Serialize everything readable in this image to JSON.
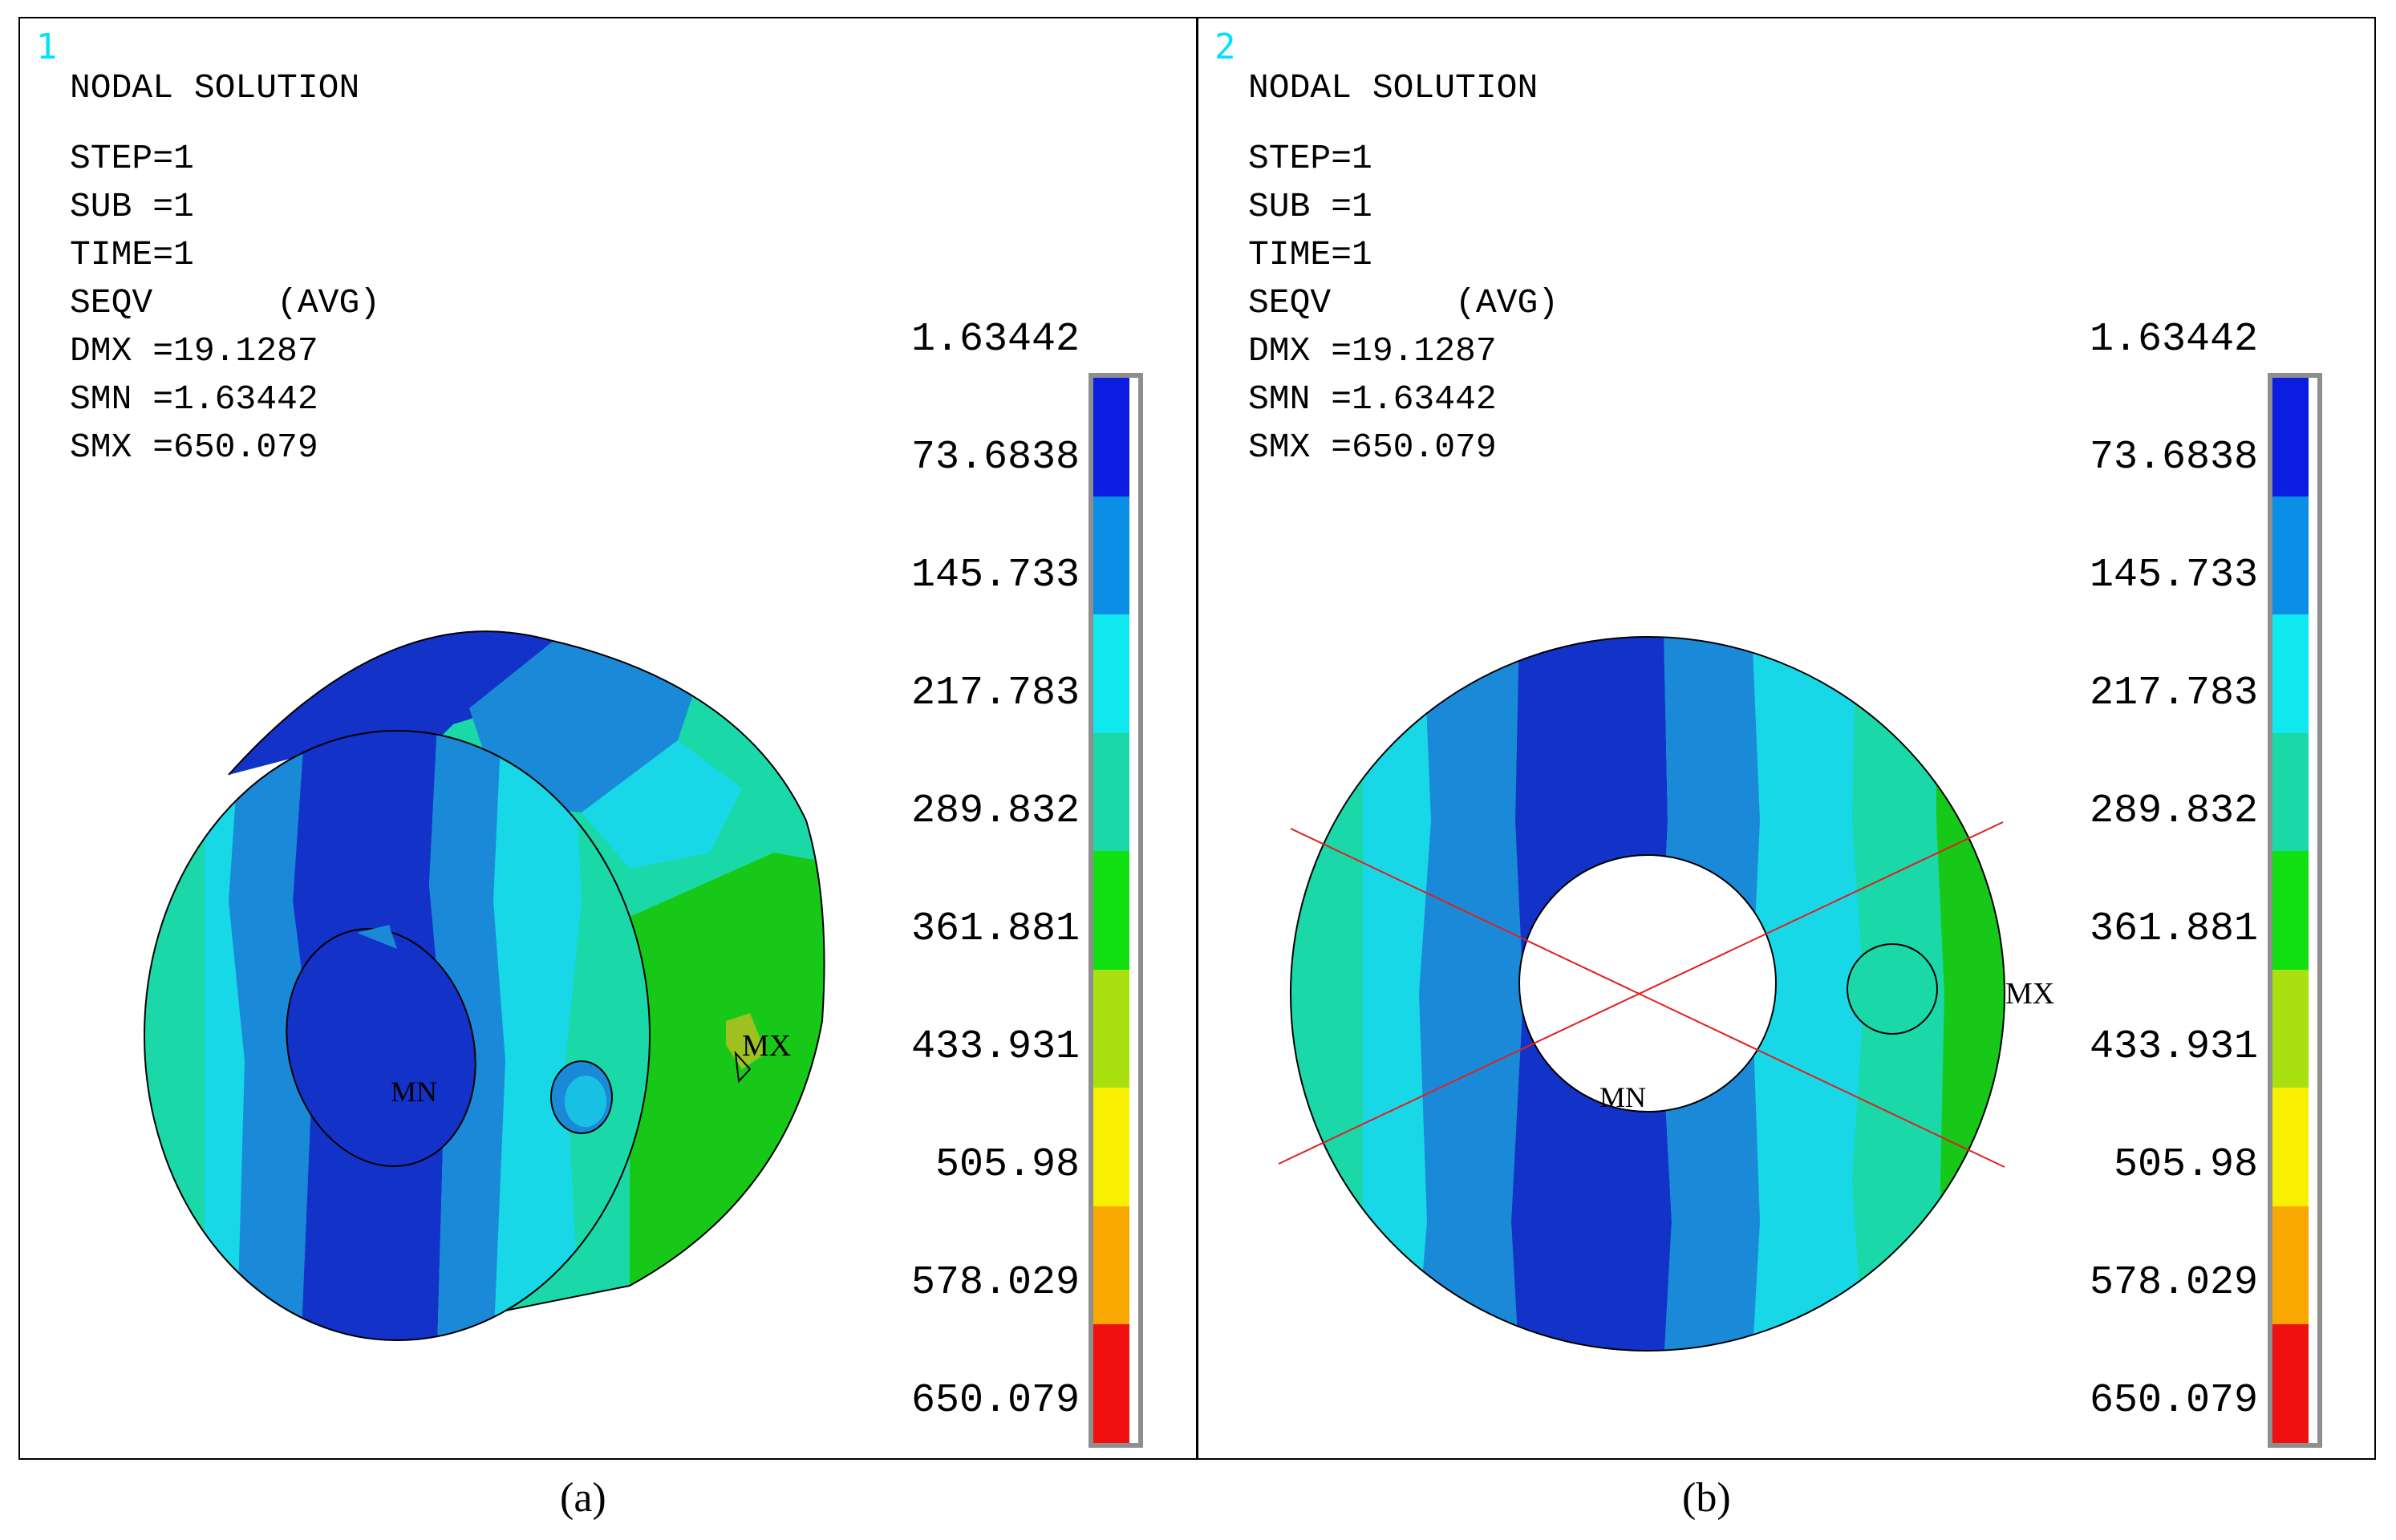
{
  "panels": [
    {
      "number": "1",
      "title": "NODAL SOLUTION",
      "info": [
        "STEP=1",
        "SUB =1",
        "TIME=1",
        "SEQV      (AVG)",
        "DMX =19.1287",
        "SMN =1.63442",
        "SMX =650.079"
      ],
      "min_marker": "MN",
      "max_marker": "MX",
      "caption": "(a)"
    },
    {
      "number": "2",
      "title": "NODAL SOLUTION",
      "info": [
        "STEP=1",
        "SUB =1",
        "TIME=1",
        "SEQV      (AVG)",
        "DMX =19.1287",
        "SMN =1.63442",
        "SMX =650.079"
      ],
      "min_marker": "MN",
      "max_marker": "MX",
      "caption": "(b)"
    }
  ],
  "legend": {
    "values": [
      "1.63442",
      "73.6838",
      "145.733",
      "217.783",
      "289.832",
      "361.881",
      "433.931",
      "505.98",
      "578.029",
      "650.079"
    ],
    "colors": [
      "#0a1de0",
      "#0a8ee6",
      "#10e8f0",
      "#1ad8a8",
      "#10e010",
      "#a8e010",
      "#f8f000",
      "#f8a800",
      "#f01010"
    ]
  },
  "colors": {
    "deep_blue": "#1232c8",
    "mid_blue": "#1a8ad8",
    "cyan": "#18d8e8",
    "teal": "#20d0a0",
    "green": "#18c818",
    "cut_lines": "#e02020",
    "panel_number": "#00e0ff",
    "legend_frame": "#8e8e8e"
  }
}
